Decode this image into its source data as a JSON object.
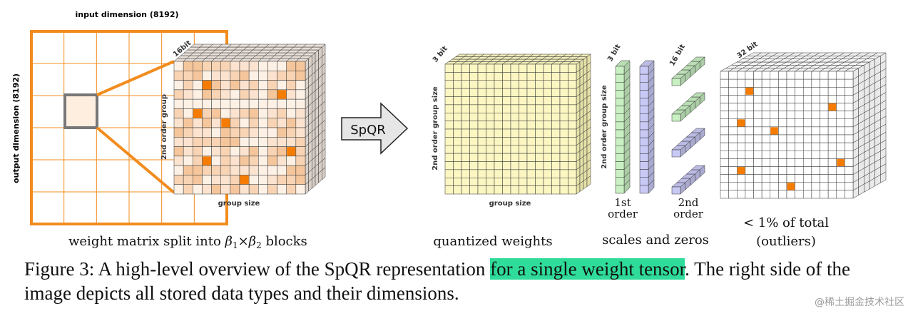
{
  "labels": {
    "input_dim": "input dimension (8192)",
    "output_dim": "output dimension (8192)",
    "bits_16": "16bit",
    "second_order_group": "2nd order group",
    "group_size": "group size",
    "weight_split_prefix": "weight matrix split into ",
    "beta1": "β",
    "sub1": "1",
    "times": "×",
    "beta2": "β",
    "sub2": "2",
    "weight_split_suffix": " blocks",
    "arrow": "SpQR",
    "bits_3": "3 bit",
    "second_order_group_size": "2nd order group size",
    "group_size_2": "group size",
    "quantized": "quantized weights",
    "bits_3b": "3 bit",
    "second_order_group_size_b": "2nd order group size",
    "bits_16b": "16 bit",
    "first_order_1": "1st",
    "first_order_2": "order",
    "second_order_1": "2nd",
    "second_order_2": "order",
    "scales_zeros": "scales and zeros",
    "bits_32": "32 bit",
    "outliers_1": "< 1% of total",
    "outliers_2": "(outliers)"
  },
  "caption": {
    "before": "Figure 3: A high-level overview of the SpQR representation ",
    "highlight": "for a single weight tensor",
    "after": ". The right side of the image depicts all stored data types and their dimensions."
  },
  "watermark": "@稀土掘金技术社区",
  "colors": {
    "orange": "#f28c1e",
    "outlier": "#f57c00",
    "quantized_fill": "#fbf6c2",
    "first_order_fill": "#c9f0c3",
    "scale_fill": "#c9c9f5",
    "block_base": "#fdf1e6"
  }
}
